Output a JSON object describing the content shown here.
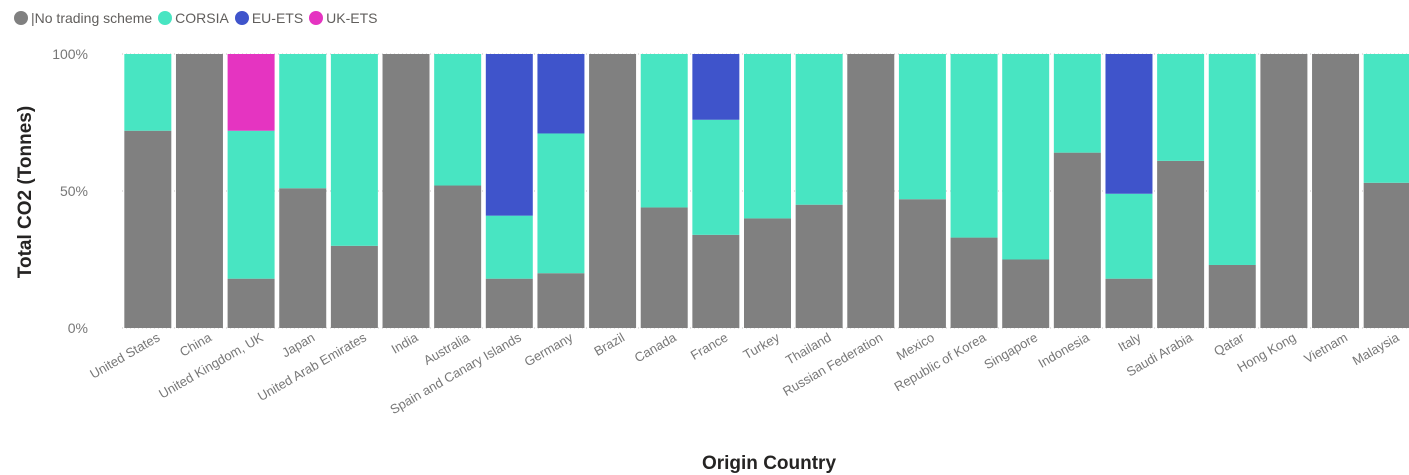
{
  "chart_data": {
    "type": "bar",
    "stacked": "100%",
    "xlabel": "Origin Country",
    "ylabel": "Total CO2 (Tonnes)",
    "ylim": [
      0,
      100
    ],
    "yticks": [
      "0%",
      "50%",
      "100%"
    ],
    "legend_position": "top-left",
    "grid": "dotted horizontal",
    "categories": [
      "United States",
      "China",
      "United Kingdom, UK",
      "Japan",
      "United Arab Emirates",
      "India",
      "Australia",
      "Spain and Canary Islands",
      "Germany",
      "Brazil",
      "Canada",
      "France",
      "Turkey",
      "Thailand",
      "Russian Federation",
      "Mexico",
      "Republic of Korea",
      "Singapore",
      "Indonesia",
      "Italy",
      "Saudi Arabia",
      "Qatar",
      "Hong Kong",
      "Vietnam",
      "Malaysia"
    ],
    "series": [
      {
        "name": "|No trading scheme",
        "color": "#808080",
        "values": [
          72,
          100,
          18,
          51,
          30,
          100,
          52,
          18,
          20,
          100,
          44,
          34,
          40,
          45,
          100,
          47,
          33,
          25,
          64,
          18,
          61,
          23,
          100,
          100,
          53
        ]
      },
      {
        "name": "CORSIA",
        "color": "#48e5c2",
        "values": [
          28,
          0,
          54,
          49,
          70,
          0,
          48,
          23,
          51,
          0,
          56,
          42,
          60,
          55,
          0,
          53,
          67,
          75,
          36,
          31,
          39,
          77,
          0,
          0,
          47
        ]
      },
      {
        "name": "EU-ETS",
        "color": "#3f54cb",
        "values": [
          0,
          0,
          0,
          0,
          0,
          0,
          0,
          59,
          29,
          0,
          0,
          24,
          0,
          0,
          0,
          0,
          0,
          0,
          0,
          51,
          0,
          0,
          0,
          0,
          0
        ]
      },
      {
        "name": "UK-ETS",
        "color": "#e534c1",
        "values": [
          0,
          0,
          28,
          0,
          0,
          0,
          0,
          0,
          0,
          0,
          0,
          0,
          0,
          0,
          0,
          0,
          0,
          0,
          0,
          0,
          0,
          0,
          0,
          0,
          0
        ]
      }
    ]
  }
}
